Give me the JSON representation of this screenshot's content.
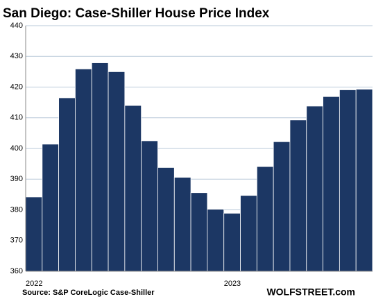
{
  "chart_data": {
    "type": "bar",
    "title": "San Diego: Case-Shiller House Price Index",
    "categories": [
      "2022",
      null,
      null,
      null,
      null,
      null,
      null,
      null,
      null,
      null,
      null,
      null,
      "2023",
      null,
      null,
      null,
      null,
      null,
      null,
      null,
      null
    ],
    "values": [
      384.2,
      401.4,
      416.5,
      425.9,
      427.9,
      425.0,
      414.0,
      402.5,
      393.8,
      390.6,
      385.6,
      380.2,
      378.9,
      384.7,
      394.1,
      402.2,
      409.3,
      413.8,
      416.9,
      419.1,
      419.3
    ],
    "color": "#1c3764",
    "ylim": [
      360,
      440
    ],
    "yticks": [
      360,
      370,
      380,
      390,
      400,
      410,
      420,
      430,
      440
    ],
    "grid": true,
    "source": "Source: S&P CoreLogic Case-Shiller",
    "watermark": "WOLFSTREET.com"
  }
}
